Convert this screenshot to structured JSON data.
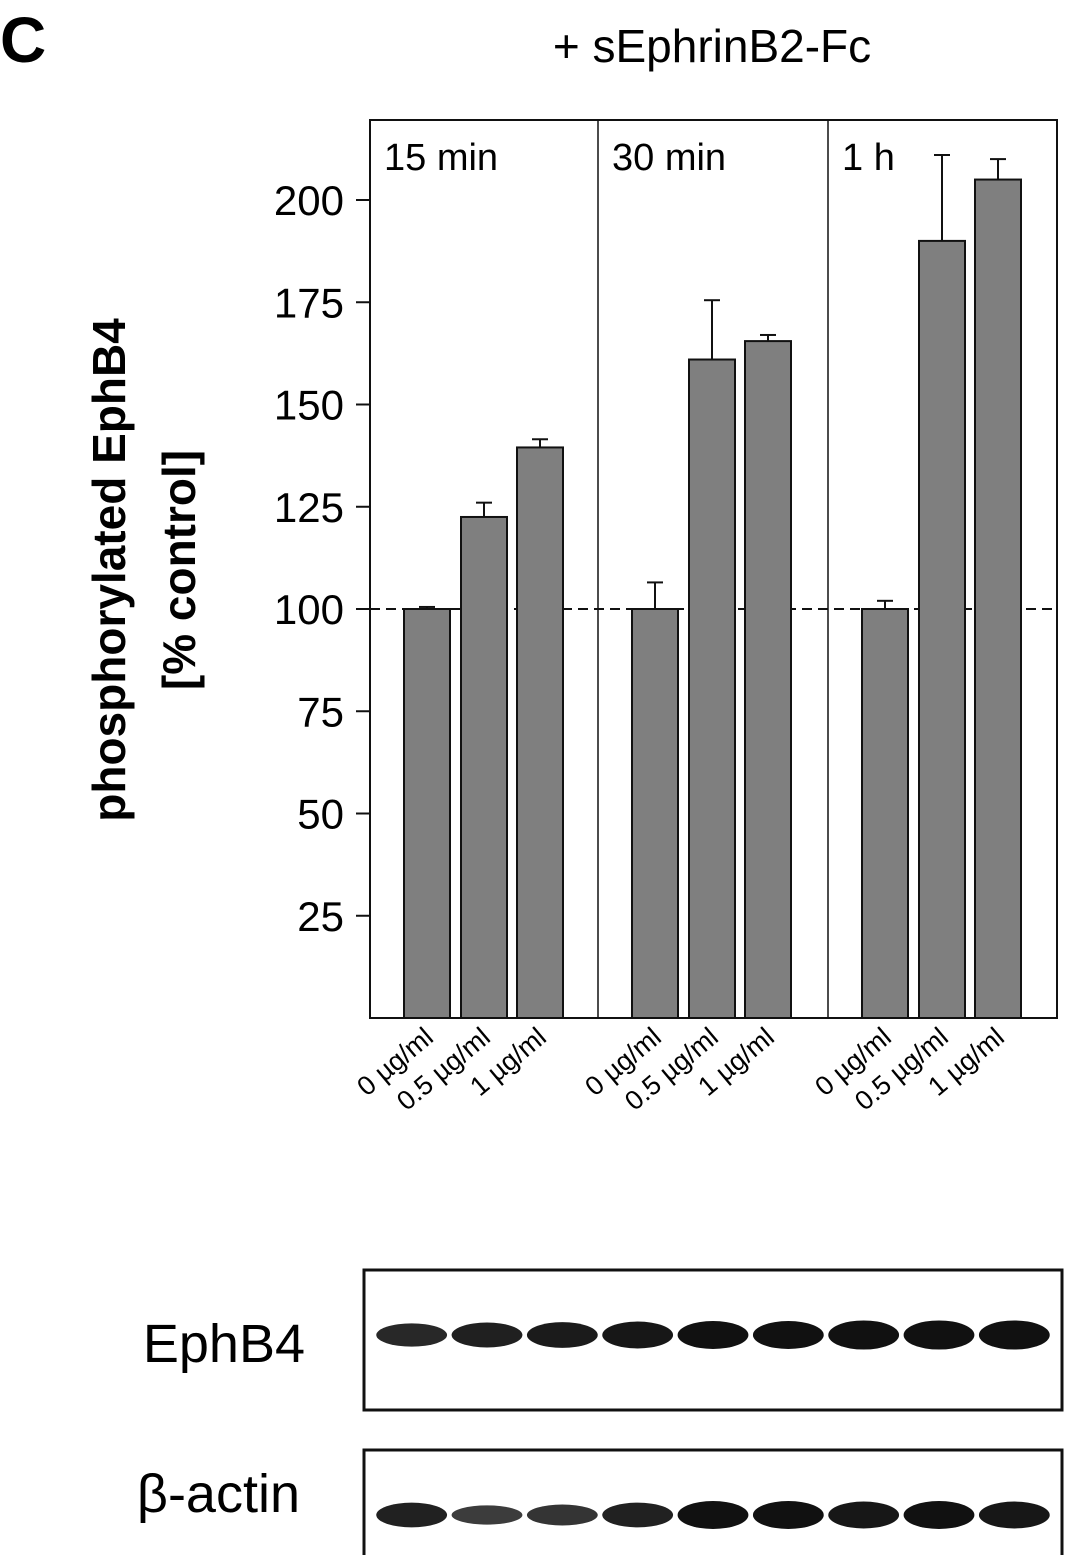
{
  "panel_label": "C",
  "chart_data": {
    "type": "bar",
    "title": "+ sEphrinB2-Fc",
    "ylabel_line1": "phosphorylated EphB4",
    "ylabel_line2": "[% control]",
    "xlabel": "",
    "ylim": [
      0,
      220
    ],
    "yticks": [
      25,
      50,
      75,
      100,
      125,
      150,
      175,
      200
    ],
    "reference_line": 100,
    "grid": false,
    "bar_color": "#7f7f7f",
    "groups": [
      {
        "label": "15 min",
        "categories": [
          "0 µg/ml",
          "0.5 µg/ml",
          "1 µg/ml"
        ],
        "values": [
          100,
          122.5,
          139.5
        ],
        "errors": [
          0.5,
          3.5,
          2
        ]
      },
      {
        "label": "30 min",
        "categories": [
          "0 µg/ml",
          "0.5 µg/ml",
          "1 µg/ml"
        ],
        "values": [
          100,
          161,
          165.5
        ],
        "errors": [
          6.5,
          14.5,
          1.5
        ]
      },
      {
        "label": "1 h",
        "categories": [
          "0 µg/ml",
          "0.5 µg/ml",
          "1 µg/ml"
        ],
        "values": [
          100,
          190,
          205
        ],
        "errors": [
          2,
          21,
          5
        ]
      }
    ]
  },
  "blots": [
    {
      "label": "EphB4",
      "lanes": 9,
      "intensities": [
        0.78,
        0.86,
        0.9,
        0.95,
        1.0,
        1.0,
        1.05,
        1.05,
        1.05
      ]
    },
    {
      "label": "β-actin",
      "lanes": 9,
      "intensities": [
        0.85,
        0.6,
        0.68,
        0.85,
        1.0,
        1.0,
        0.95,
        1.0,
        0.95
      ]
    }
  ]
}
